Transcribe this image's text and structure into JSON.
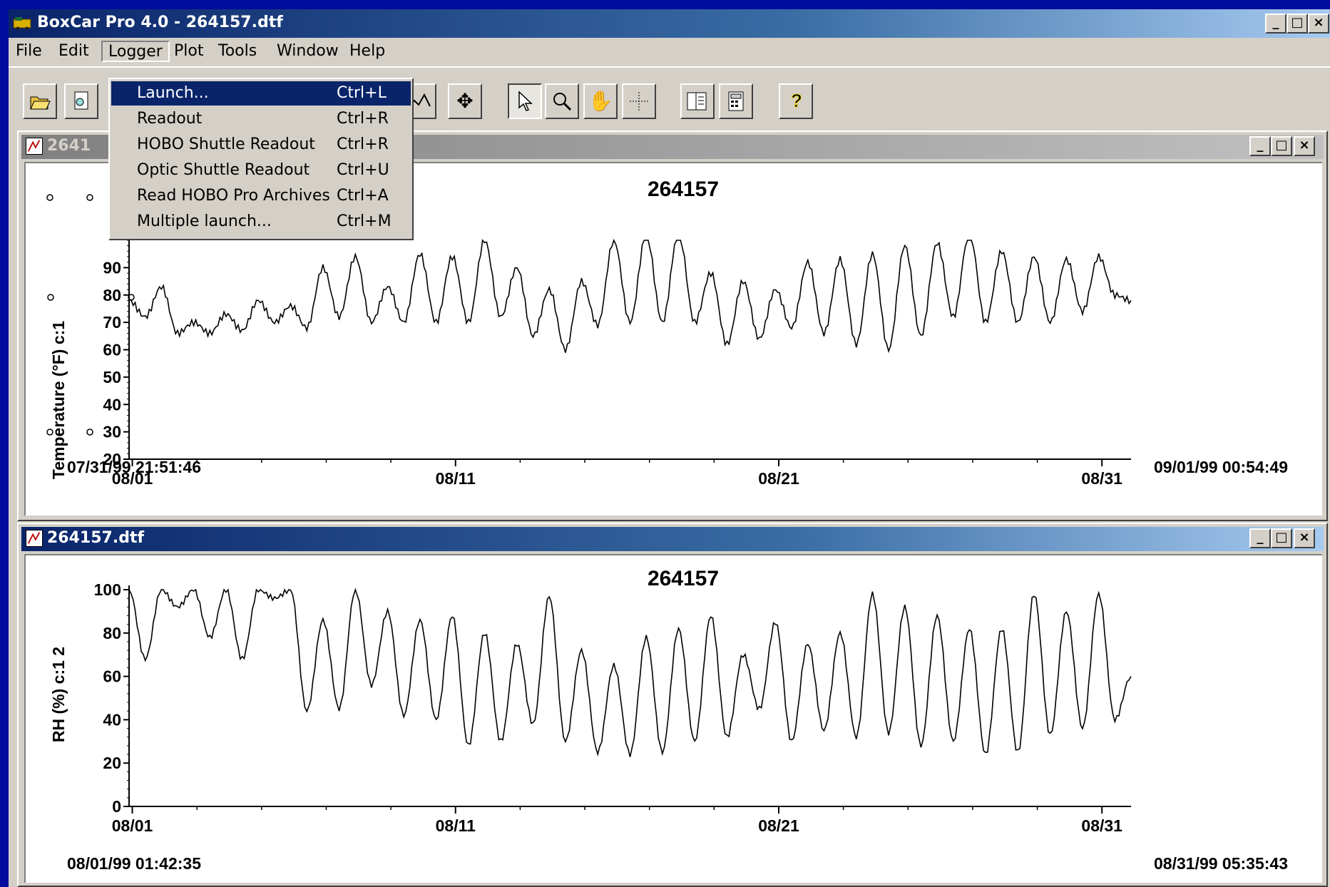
{
  "window": {
    "title": "BoxCar Pro 4.0 - 264157.dtf"
  },
  "menubar": [
    "File",
    "Edit",
    "Logger",
    "Plot",
    "Tools",
    "Window",
    "Help"
  ],
  "logger_menu": [
    {
      "label": "Launch...",
      "shortcut": "Ctrl+L",
      "selected": true
    },
    {
      "label": "Readout",
      "shortcut": "Ctrl+R"
    },
    {
      "label": "HOBO Shuttle Readout",
      "shortcut": "Ctrl+R"
    },
    {
      "label": "Optic Shuttle Readout",
      "shortcut": "Ctrl+U"
    },
    {
      "label": "Read HOBO Pro Archives",
      "shortcut": "Ctrl+A"
    },
    {
      "label": "Multiple launch...",
      "shortcut": "Ctrl+M"
    }
  ],
  "toolbar": [
    "open-icon",
    "print-preview-icon",
    "line-chart-icon",
    "move-icon",
    "pointer-icon",
    "zoom-icon",
    "hand-icon",
    "crosshair-icon",
    "book-icon",
    "calculator-icon",
    "help-icon"
  ],
  "top_window": {
    "title": "264157.dtf",
    "title_visible": "2641",
    "chart_title": "264157",
    "ylabel": "Temperature (°F) c:1",
    "start_date": "07/31/99 21:51:46",
    "end_date": "09/01/99 00:54:49"
  },
  "bottom_window": {
    "title": "264157.dtf",
    "chart_title": "264157",
    "ylabel": "RH (%) c:1 2",
    "start_date": "08/01/99 01:42:35",
    "end_date": "08/31/99 05:35:43"
  },
  "chart_data": [
    {
      "type": "line",
      "title": "264157",
      "ylabel": "Temperature (°F) c:1",
      "ylim": [
        20,
        100
      ],
      "yticks": [
        20,
        30,
        40,
        50,
        60,
        70,
        80,
        90
      ],
      "xticklabels": [
        "08/01",
        "08/11",
        "08/21",
        "08/31"
      ],
      "x": [
        0,
        0.5,
        1,
        1.5,
        2,
        2.5,
        3,
        3.5,
        4,
        4.5,
        5,
        5.5,
        6,
        6.5,
        7,
        7.5,
        8,
        8.5,
        9,
        9.5,
        10,
        10.5,
        11,
        11.5,
        12,
        12.5,
        13,
        13.5,
        14,
        14.5,
        15,
        15.5,
        16,
        16.5,
        17,
        17.5,
        18,
        18.5,
        19,
        19.5,
        20,
        20.5,
        21,
        21.5,
        22,
        22.5,
        23,
        23.5,
        24,
        24.5,
        25,
        25.5,
        26,
        26.5,
        27,
        27.5,
        28,
        28.5,
        29,
        29.5,
        30,
        30.5,
        31
      ],
      "values": [
        78,
        72,
        83,
        66,
        70,
        66,
        73,
        67,
        78,
        70,
        76,
        68,
        90,
        72,
        94,
        70,
        83,
        70,
        95,
        70,
        94,
        70,
        100,
        72,
        90,
        65,
        82,
        60,
        85,
        69,
        100,
        70,
        102,
        70,
        103,
        70,
        88,
        62,
        85,
        64,
        82,
        68,
        92,
        66,
        93,
        62,
        95,
        60,
        98,
        65,
        99,
        72,
        103,
        70,
        96,
        70,
        94,
        70,
        93,
        74,
        94,
        80,
        78
      ]
    },
    {
      "type": "line",
      "title": "264157",
      "ylabel": "RH (%) c:1 2",
      "ylim": [
        0,
        100
      ],
      "yticks": [
        0,
        20,
        40,
        60,
        80,
        100
      ],
      "xticklabels": [
        "08/01",
        "08/11",
        "08/21",
        "08/31"
      ],
      "x": [
        0,
        0.5,
        1,
        1.5,
        2,
        2.5,
        3,
        3.5,
        4,
        4.5,
        5,
        5.5,
        6,
        6.5,
        7,
        7.5,
        8,
        8.5,
        9,
        9.5,
        10,
        10.5,
        11,
        11.5,
        12,
        12.5,
        13,
        13.5,
        14,
        14.5,
        15,
        15.5,
        16,
        16.5,
        17,
        17.5,
        18,
        18.5,
        19,
        19.5,
        20,
        20.5,
        21,
        21.5,
        22,
        22.5,
        23,
        23.5,
        24,
        24.5,
        25,
        25.5,
        26,
        26.5,
        27,
        27.5,
        28,
        28.5,
        29,
        29.5,
        30,
        30.5,
        31
      ],
      "values": [
        100,
        68,
        100,
        92,
        100,
        78,
        100,
        68,
        100,
        96,
        100,
        44,
        86,
        45,
        100,
        56,
        90,
        42,
        86,
        40,
        88,
        28,
        80,
        30,
        75,
        38,
        97,
        30,
        72,
        25,
        65,
        24,
        78,
        25,
        82,
        30,
        88,
        32,
        70,
        45,
        85,
        30,
        75,
        35,
        80,
        32,
        98,
        34,
        92,
        28,
        88,
        30,
        82,
        24,
        82,
        25,
        98,
        33,
        90,
        36,
        98,
        40,
        60
      ]
    }
  ]
}
